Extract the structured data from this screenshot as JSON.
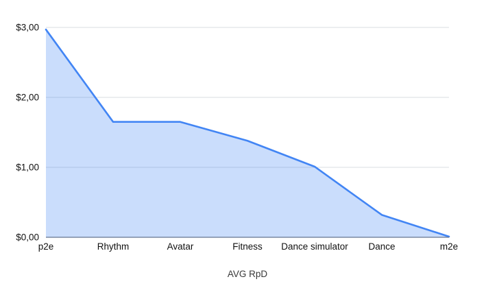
{
  "chart_data": {
    "type": "area",
    "title": "",
    "xlabel": "AVG RpD",
    "ylabel": "",
    "categories": [
      "p2e",
      "Rhythm",
      "Avatar",
      "Fitness",
      "Dance simulator",
      "Dance",
      "m2e"
    ],
    "values": [
      2.97,
      1.65,
      1.65,
      1.38,
      1.01,
      0.32,
      0.01
    ],
    "ylim": [
      0,
      3
    ],
    "y_ticks": [
      {
        "value": 3,
        "label": "$3,00"
      },
      {
        "value": 2,
        "label": "$2,00"
      },
      {
        "value": 1,
        "label": "$1,00"
      },
      {
        "value": 0,
        "label": "$0,00"
      }
    ],
    "grid": true,
    "legend": "none",
    "colors": {
      "line": "#4285f4",
      "fill": "rgba(66,133,244,0.28)",
      "gridline": "#dadce0",
      "axis_line": "#64748f",
      "tick_text": "#111111",
      "axis_title_text": "#383838",
      "background": "#ffffff"
    }
  }
}
